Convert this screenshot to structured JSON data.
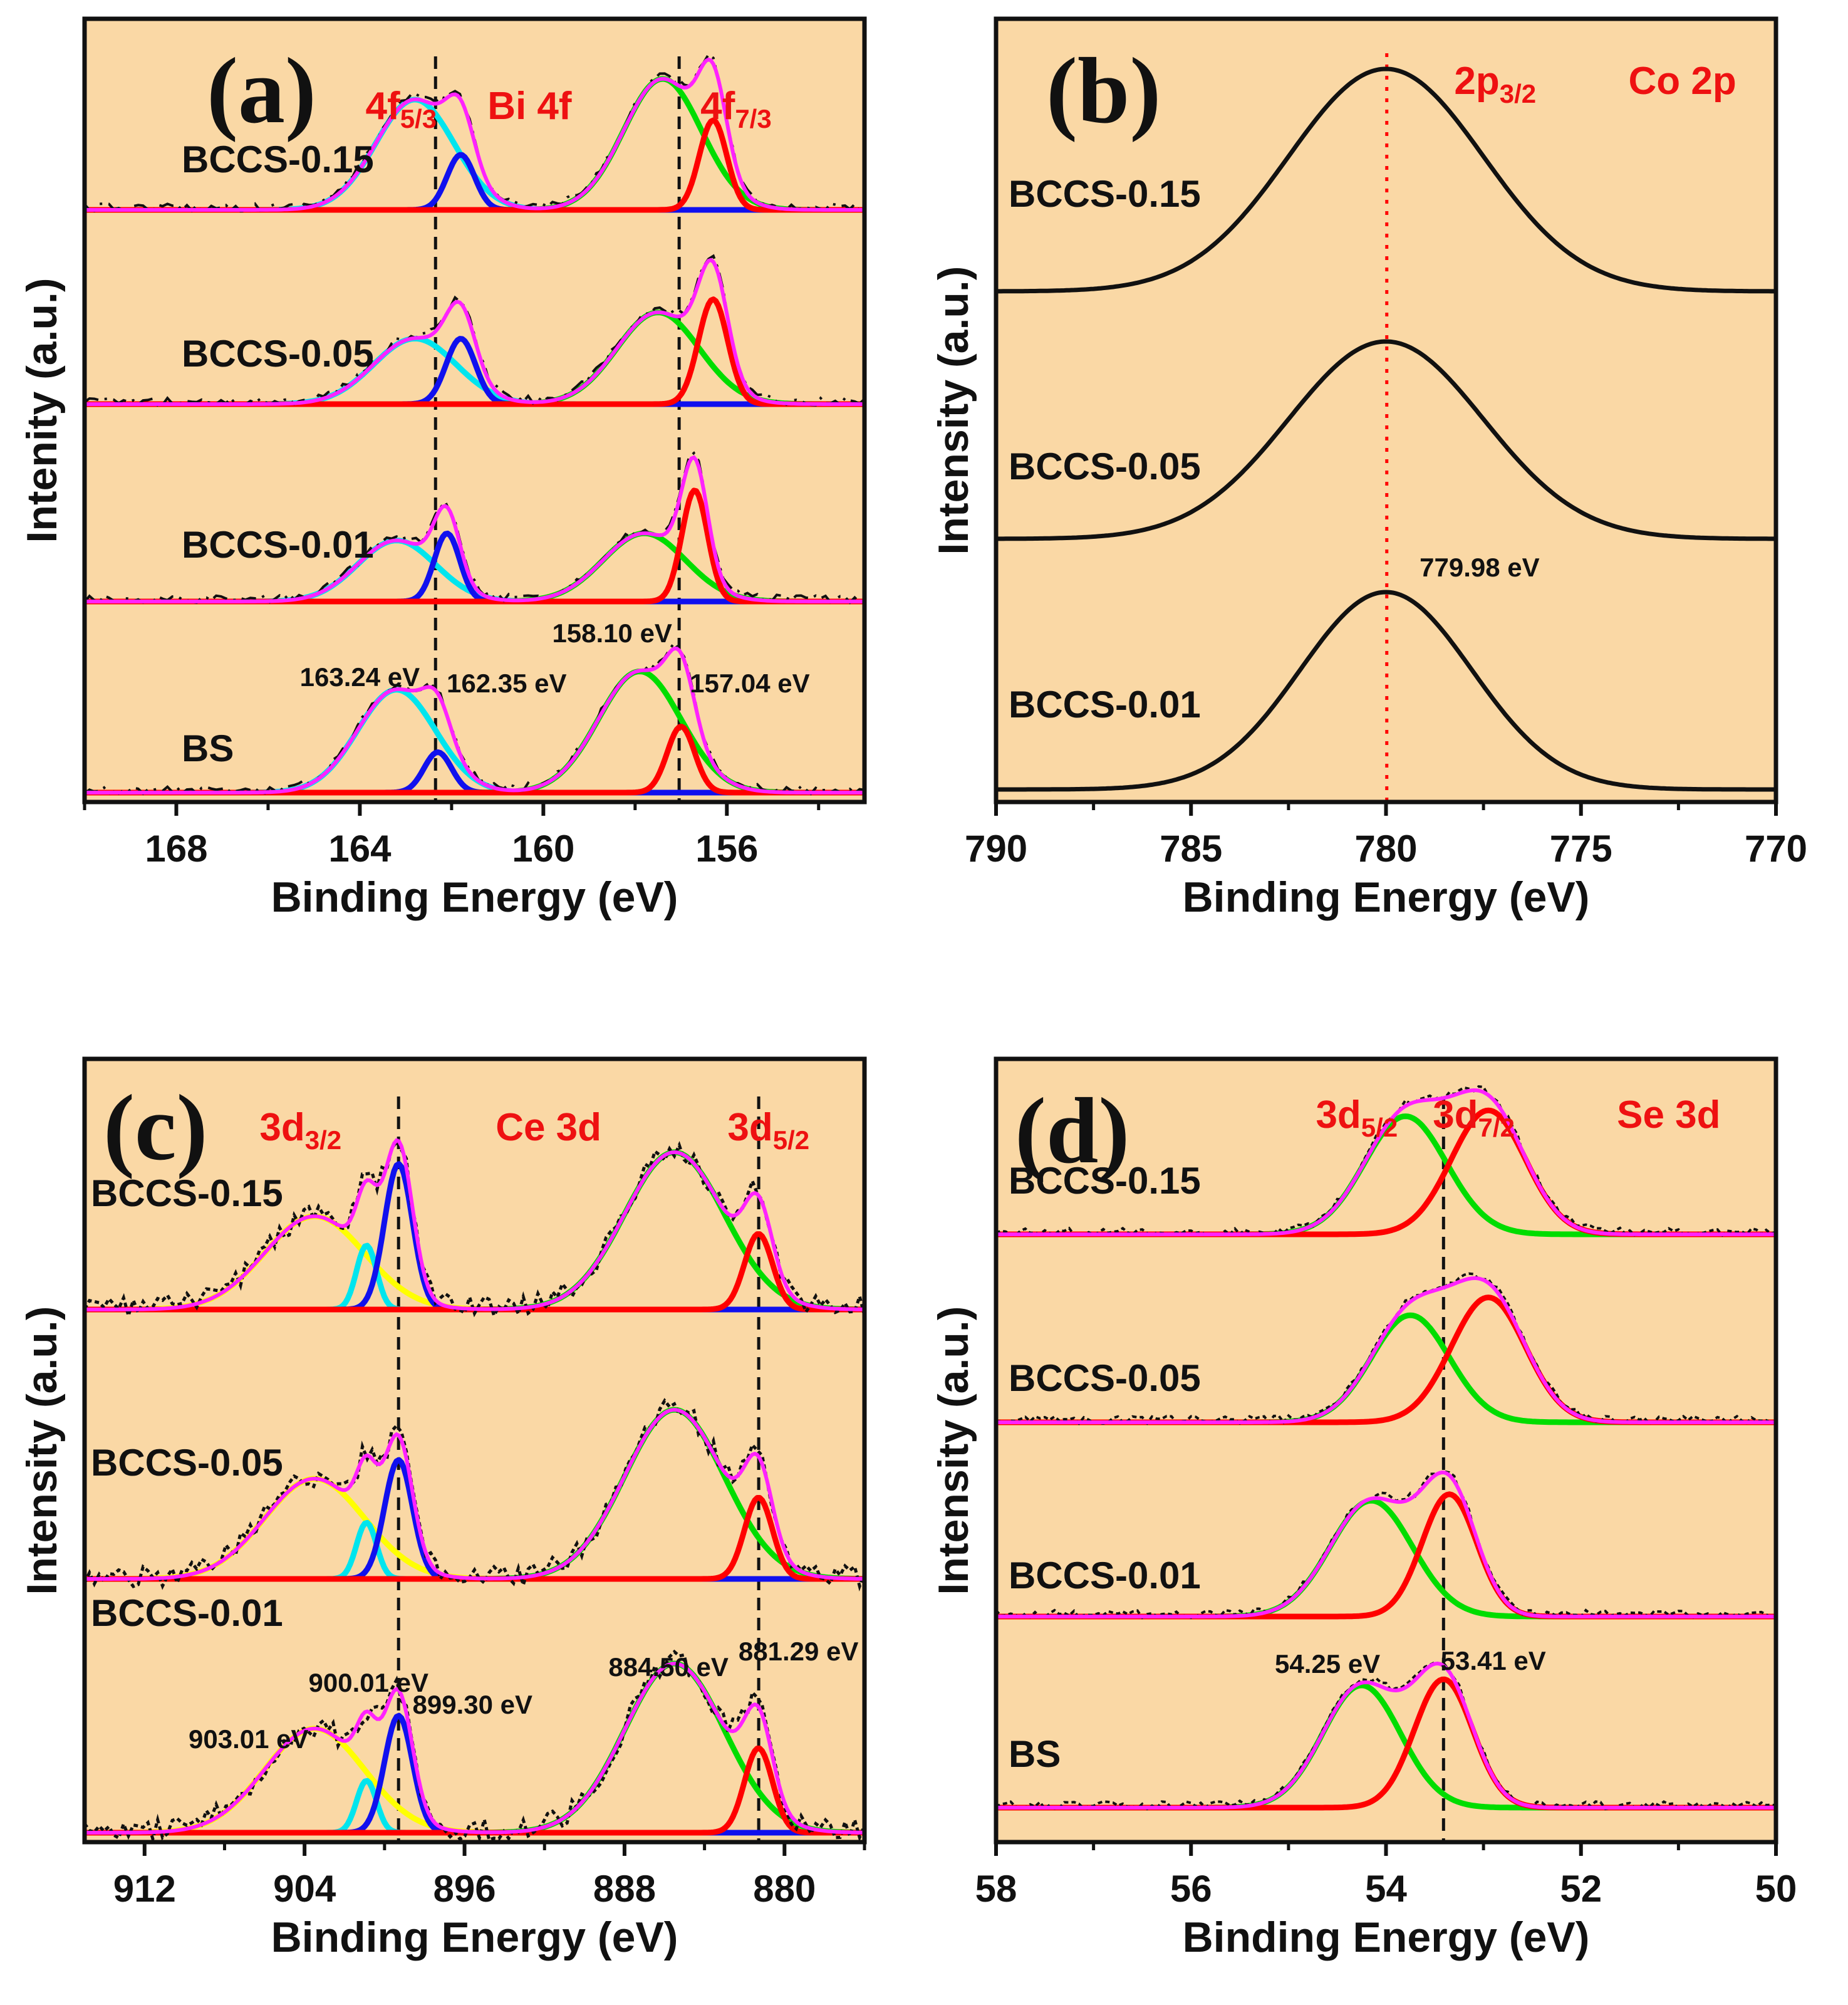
{
  "colors": {
    "panel_bg": "#fad8a5",
    "envelope": "#ff22ff",
    "raw": "#111111",
    "red": "#ff0000",
    "green": "#00dd00",
    "blue": "#1010ee",
    "cyan": "#00e5ee",
    "yellow": "#ffff00",
    "ref_red": "#ff0000",
    "ref_black": "#111111"
  },
  "chart_data": [
    {
      "id": "a",
      "type": "line",
      "panel_letter": "(a)",
      "element": "Bi 4f",
      "xlabel": "Binding Energy (eV)",
      "ylabel": "Intenity (a.u.)",
      "xlim": [
        170,
        153
      ],
      "xticks": [
        168,
        164,
        160,
        156
      ],
      "peak_labels": [
        {
          "main": "4f",
          "sub": "5/3",
          "x": 163.1
        },
        {
          "main": "Bi 4f",
          "sub": "",
          "x": 160.3
        },
        {
          "main": "4f",
          "sub": "7/3",
          "x": 155.8
        }
      ],
      "reference_lines": [
        {
          "x": 162.35,
          "style": "black-dashed"
        },
        {
          "x": 157.04,
          "style": "black-dashed"
        }
      ],
      "annotations": [
        {
          "text": "163.24 eV",
          "x": 164.0
        },
        {
          "text": "162.35 eV",
          "x": 160.8
        },
        {
          "text": "158.10 eV",
          "x": 158.5
        },
        {
          "text": "157.04 eV",
          "x": 155.5
        }
      ],
      "stacks": [
        {
          "label": "BCCS-0.15",
          "peaks": [
            {
              "center": 162.8,
              "width": 0.85,
              "height": 0.8,
              "color": "cyan"
            },
            {
              "center": 161.8,
              "width": 0.3,
              "height": 0.4,
              "color": "blue"
            },
            {
              "center": 157.4,
              "width": 0.85,
              "height": 0.95,
              "color": "green"
            },
            {
              "center": 156.3,
              "width": 0.3,
              "height": 0.65,
              "color": "red"
            }
          ]
        },
        {
          "label": "BCCS-0.05",
          "peaks": [
            {
              "center": 162.8,
              "width": 0.9,
              "height": 0.75,
              "color": "cyan"
            },
            {
              "center": 161.8,
              "width": 0.32,
              "height": 0.75,
              "color": "blue"
            },
            {
              "center": 157.5,
              "width": 0.9,
              "height": 1.05,
              "color": "green"
            },
            {
              "center": 156.3,
              "width": 0.32,
              "height": 1.2,
              "color": "red"
            }
          ]
        },
        {
          "label": "BCCS-0.01",
          "peaks": [
            {
              "center": 163.2,
              "width": 0.85,
              "height": 0.85,
              "color": "cyan"
            },
            {
              "center": 162.1,
              "width": 0.28,
              "height": 0.95,
              "color": "blue"
            },
            {
              "center": 157.8,
              "width": 0.9,
              "height": 0.95,
              "color": "green"
            },
            {
              "center": 156.7,
              "width": 0.28,
              "height": 1.55,
              "color": "red"
            }
          ]
        },
        {
          "label": "BS",
          "peaks": [
            {
              "center": 163.2,
              "width": 0.85,
              "height": 1.4,
              "color": "cyan"
            },
            {
              "center": 162.3,
              "width": 0.3,
              "height": 0.55,
              "color": "blue"
            },
            {
              "center": 157.9,
              "width": 0.9,
              "height": 1.65,
              "color": "green"
            },
            {
              "center": 157.0,
              "width": 0.3,
              "height": 0.9,
              "color": "red"
            }
          ]
        }
      ]
    },
    {
      "id": "b",
      "type": "line",
      "panel_letter": "(b)",
      "element": "Co 2p",
      "xlabel": "Binding Energy (eV)",
      "ylabel": "Intensity (a.u.)",
      "xlim": [
        790,
        770
      ],
      "xticks": [
        790,
        785,
        780,
        775,
        770
      ],
      "peak_labels": [
        {
          "main": "2p",
          "sub": "3/2",
          "x": 777.2
        },
        {
          "main": "Co 2p",
          "sub": "",
          "x": 772.4
        }
      ],
      "reference_lines": [
        {
          "x": 779.98,
          "style": "red-dotted"
        }
      ],
      "annotations": [
        {
          "text": "779.98 eV",
          "x": 777.6
        }
      ],
      "stacks": [
        {
          "label": "BCCS-0.15",
          "peaks": [
            {
              "center": 780.0,
              "width": 2.5,
              "height": 1.0,
              "color": "raw"
            }
          ]
        },
        {
          "label": "BCCS-0.05",
          "peaks": [
            {
              "center": 780.0,
              "width": 2.5,
              "height": 1.0,
              "color": "raw"
            }
          ]
        },
        {
          "label": "BCCS-0.01",
          "peaks": [
            {
              "center": 780.0,
              "width": 2.2,
              "height": 1.0,
              "color": "raw"
            }
          ]
        }
      ]
    },
    {
      "id": "c",
      "type": "line",
      "panel_letter": "(c)",
      "element": "Ce 3d",
      "xlabel": "Binding Energy (eV)",
      "ylabel": "Intensity (a.u.)",
      "xlim": [
        915,
        876
      ],
      "xticks": [
        912,
        904,
        896,
        888,
        880
      ],
      "peak_labels": [
        {
          "main": "3d",
          "sub": "3/2",
          "x": 904.2
        },
        {
          "main": "Ce 3d",
          "sub": "",
          "x": 891.8
        },
        {
          "main": "3d",
          "sub": "5/2",
          "x": 880.8
        }
      ],
      "reference_lines": [
        {
          "x": 899.3,
          "style": "black-dashed"
        },
        {
          "x": 881.29,
          "style": "black-dashed"
        }
      ],
      "annotations": [
        {
          "text": "903.01 eV",
          "x": 906.8
        },
        {
          "text": "900.01 eV",
          "x": 900.8
        },
        {
          "text": "899.30 eV",
          "x": 895.6
        },
        {
          "text": "884.50 eV",
          "x": 885.8
        },
        {
          "text": "881.29 eV",
          "x": 879.3
        }
      ],
      "stacks": [
        {
          "label": "BCCS-0.15",
          "peaks": [
            {
              "center": 903.5,
              "width": 2.5,
              "height": 0.8,
              "color": "yellow"
            },
            {
              "center": 900.9,
              "width": 0.5,
              "height": 0.55,
              "color": "cyan"
            },
            {
              "center": 899.3,
              "width": 0.7,
              "height": 1.25,
              "color": "blue"
            },
            {
              "center": 885.5,
              "width": 2.5,
              "height": 1.35,
              "color": "green"
            },
            {
              "center": 881.3,
              "width": 0.7,
              "height": 0.65,
              "color": "red"
            }
          ]
        },
        {
          "label": "BCCS-0.05",
          "peaks": [
            {
              "center": 903.5,
              "width": 2.5,
              "height": 0.8,
              "color": "yellow"
            },
            {
              "center": 900.9,
              "width": 0.5,
              "height": 0.45,
              "color": "cyan"
            },
            {
              "center": 899.3,
              "width": 0.7,
              "height": 0.95,
              "color": "blue"
            },
            {
              "center": 885.5,
              "width": 2.5,
              "height": 1.35,
              "color": "green"
            },
            {
              "center": 881.3,
              "width": 0.7,
              "height": 0.65,
              "color": "red"
            }
          ]
        },
        {
          "label": "BCCS-0.01",
          "peaks": [
            {
              "center": 903.5,
              "width": 2.5,
              "height": 0.8,
              "color": "yellow"
            },
            {
              "center": 900.9,
              "width": 0.5,
              "height": 0.4,
              "color": "cyan"
            },
            {
              "center": 899.3,
              "width": 0.7,
              "height": 0.9,
              "color": "blue"
            },
            {
              "center": 885.5,
              "width": 2.5,
              "height": 1.3,
              "color": "green"
            },
            {
              "center": 881.3,
              "width": 0.7,
              "height": 0.65,
              "color": "red"
            }
          ]
        }
      ]
    },
    {
      "id": "d",
      "type": "line",
      "panel_letter": "(d)",
      "element": "Se 3d",
      "xlabel": "Binding Energy (eV)",
      "ylabel": "Intensity (a.u.)",
      "xlim": [
        58,
        50
      ],
      "xticks": [
        58,
        56,
        54,
        52,
        50
      ],
      "peak_labels": [
        {
          "main": "3d",
          "sub": "5/2",
          "x": 54.3
        },
        {
          "main": "3d",
          "sub": "7/2",
          "x": 53.1
        },
        {
          "main": "Se 3d",
          "sub": "",
          "x": 51.1
        }
      ],
      "reference_lines": [
        {
          "x": 53.41,
          "style": "black-dashed"
        }
      ],
      "annotations": [
        {
          "text": "54.25 eV",
          "x": 54.6
        },
        {
          "text": "53.41 eV",
          "x": 52.9
        }
      ],
      "stacks": [
        {
          "label": "BCCS-0.15",
          "peaks": [
            {
              "center": 53.8,
              "width": 0.42,
              "height": 1.0,
              "color": "green"
            },
            {
              "center": 52.95,
              "width": 0.38,
              "height": 1.05,
              "color": "red"
            }
          ]
        },
        {
          "label": "BCCS-0.05",
          "peaks": [
            {
              "center": 53.75,
              "width": 0.4,
              "height": 0.9,
              "color": "green"
            },
            {
              "center": 52.95,
              "width": 0.38,
              "height": 1.05,
              "color": "red"
            }
          ]
        },
        {
          "label": "BCCS-0.01",
          "peaks": [
            {
              "center": 54.15,
              "width": 0.42,
              "height": 0.9,
              "color": "green"
            },
            {
              "center": 53.35,
              "width": 0.28,
              "height": 0.95,
              "color": "red"
            }
          ]
        },
        {
          "label": "BS",
          "peaks": [
            {
              "center": 54.25,
              "width": 0.4,
              "height": 1.0,
              "color": "green"
            },
            {
              "center": 53.41,
              "width": 0.3,
              "height": 1.05,
              "color": "red"
            }
          ]
        }
      ]
    }
  ]
}
